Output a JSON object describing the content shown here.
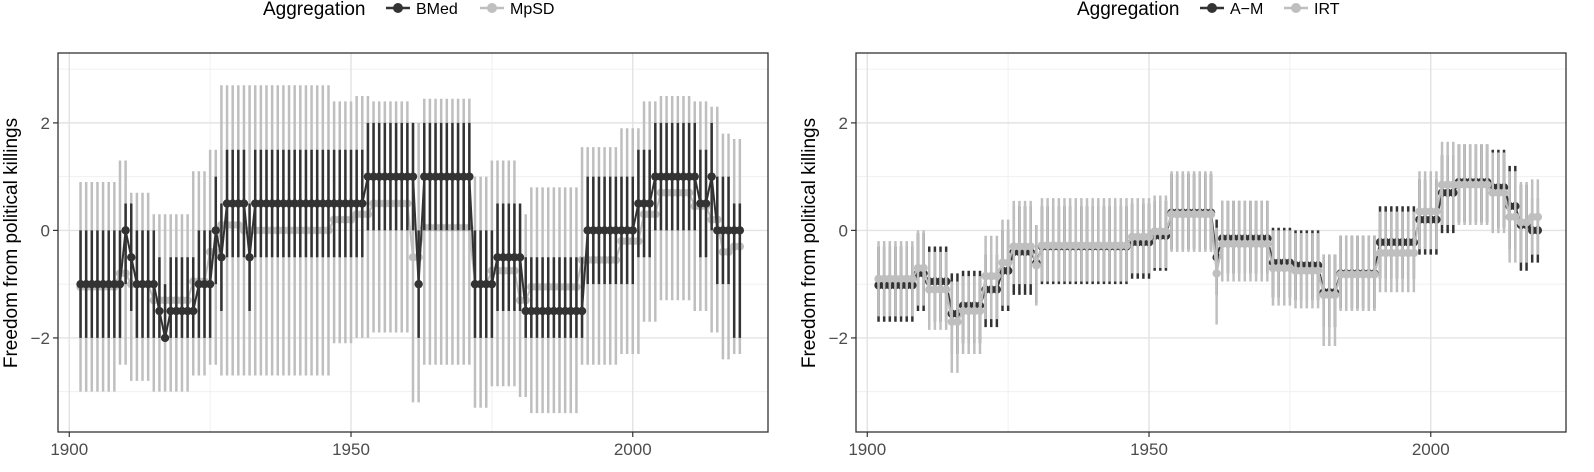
{
  "chart_data": [
    {
      "type": "line",
      "ylabel": "Freedom from political killings",
      "xlabel": "",
      "xlim": [
        1898,
        2024
      ],
      "ylim": [
        -3.75,
        3.3
      ],
      "x_ticks": [
        1900,
        1950,
        2000
      ],
      "x_tick_labels": [
        "1900",
        "1950",
        "2000"
      ],
      "y_ticks": [
        -2,
        0,
        2
      ],
      "y_tick_labels": [
        "−2",
        "0",
        "2"
      ],
      "grid": true,
      "legend": {
        "title": "Aggregation",
        "placement": "top",
        "entries": [
          {
            "name": "BMed",
            "color": "#333333"
          },
          {
            "name": "MpSD",
            "color": "#bfbfbf"
          }
        ]
      },
      "series": [
        {
          "name": "MpSD",
          "color": "#bfbfbf",
          "linewidth": 2.5,
          "segments": [
            [
              1902,
              1908,
              -1.05,
              -3,
              0.9
            ],
            [
              1909,
              1910,
              -0.8,
              -2.5,
              1.3
            ],
            [
              1911,
              1914,
              -1.0,
              -2.8,
              0.7
            ],
            [
              1915,
              1921,
              -1.3,
              -3.0,
              0.3
            ],
            [
              1922,
              1924,
              -0.95,
              -2.7,
              1.1
            ],
            [
              1925,
              1926,
              -0.4,
              -2.5,
              1.5
            ],
            [
              1927,
              1930,
              0.1,
              -2.7,
              2.7
            ],
            [
              1931,
              1946,
              0.0,
              -2.7,
              2.7
            ],
            [
              1947,
              1950,
              0.2,
              -2.1,
              2.4
            ],
            [
              1951,
              1953,
              0.3,
              -2.0,
              2.5
            ],
            [
              1954,
              1960,
              0.5,
              -1.9,
              2.4
            ],
            [
              1961,
              1962,
              -0.5,
              -3.2,
              2.0
            ],
            [
              1963,
              1971,
              0.05,
              -2.5,
              2.45
            ],
            [
              1972,
              1974,
              -1.0,
              -3.3,
              1.0
            ],
            [
              1975,
              1979,
              -0.75,
              -2.9,
              1.3
            ],
            [
              1980,
              1981,
              -1.3,
              -3.1,
              0.3
            ],
            [
              1982,
              1990,
              -1.05,
              -3.4,
              0.8
            ],
            [
              1991,
              1997,
              -0.55,
              -2.5,
              1.55
            ],
            [
              1998,
              2001,
              -0.2,
              -2.3,
              1.9
            ],
            [
              2002,
              2004,
              0.3,
              -1.7,
              2.4
            ],
            [
              2005,
              2010,
              0.7,
              -1.3,
              2.5
            ],
            [
              2011,
              2013,
              0.45,
              -1.5,
              2.4
            ],
            [
              2014,
              2015,
              0.2,
              -1.9,
              2.3
            ],
            [
              2016,
              2017,
              -0.4,
              -2.4,
              1.8
            ],
            [
              2018,
              2019,
              -0.3,
              -2.3,
              1.7
            ]
          ]
        },
        {
          "name": "BMed",
          "color": "#333333",
          "linewidth": 2.5,
          "segments": [
            [
              1902,
              1909,
              -1.0,
              -2.0,
              0.0
            ],
            [
              1910,
              1910,
              0.0,
              -1.0,
              0.5
            ],
            [
              1911,
              1911,
              -0.5,
              -1.5,
              0.5
            ],
            [
              1912,
              1915,
              -1.0,
              -2.0,
              0.0
            ],
            [
              1916,
              1916,
              -1.5,
              -2.0,
              -0.5
            ],
            [
              1917,
              1917,
              -2.0,
              -2.0,
              -1.0
            ],
            [
              1918,
              1922,
              -1.5,
              -2.0,
              -0.5
            ],
            [
              1923,
              1925,
              -1.0,
              -2.0,
              0.0
            ],
            [
              1926,
              1926,
              0.0,
              -1.0,
              1.0
            ],
            [
              1927,
              1927,
              -0.5,
              -1.5,
              0.5
            ],
            [
              1928,
              1931,
              0.5,
              -0.5,
              1.5
            ],
            [
              1932,
              1932,
              -0.5,
              -1.5,
              0.5
            ],
            [
              1933,
              1952,
              0.5,
              -0.5,
              1.5
            ],
            [
              1953,
              1961,
              1.0,
              0.0,
              2.0
            ],
            [
              1962,
              1962,
              -1.0,
              -2.0,
              0.0
            ],
            [
              1963,
              1971,
              1.0,
              0.0,
              2.0
            ],
            [
              1972,
              1972,
              -1.0,
              -2.0,
              0.0
            ],
            [
              1973,
              1975,
              -1.0,
              -2.0,
              0.0
            ],
            [
              1976,
              1980,
              -0.5,
              -1.5,
              0.5
            ],
            [
              1981,
              1991,
              -1.5,
              -2.0,
              -0.5
            ],
            [
              1992,
              1999,
              0.0,
              -1.0,
              1.0
            ],
            [
              2000,
              2000,
              0.0,
              -1.0,
              1.0
            ],
            [
              2001,
              2003,
              0.5,
              -0.5,
              1.5
            ],
            [
              2004,
              2011,
              1.0,
              0.0,
              2.0
            ],
            [
              2012,
              2013,
              0.5,
              -0.5,
              1.5
            ],
            [
              2014,
              2014,
              1.0,
              0.0,
              2.0
            ],
            [
              2015,
              2017,
              0.0,
              -1.0,
              1.0
            ],
            [
              2018,
              2019,
              0.0,
              -2.0,
              0.5
            ]
          ]
        }
      ]
    },
    {
      "type": "line",
      "ylabel": "Freedom from political killings",
      "xlabel": "",
      "xlim": [
        1898,
        2024
      ],
      "ylim": [
        -3.75,
        3.3
      ],
      "x_ticks": [
        1900,
        1950,
        2000
      ],
      "x_tick_labels": [
        "1900",
        "1950",
        "2000"
      ],
      "y_ticks": [
        -2,
        0,
        2
      ],
      "y_tick_labels": [
        "−2",
        "0",
        "2"
      ],
      "grid": true,
      "legend": {
        "title": "Aggregation",
        "placement": "top",
        "entries": [
          {
            "name": "A−M",
            "color": "#333333"
          },
          {
            "name": "IRT",
            "color": "#bfbfbf"
          }
        ]
      },
      "series": [
        {
          "name": "A−M",
          "color": "#333333",
          "linewidth": 2.5,
          "segments": [
            [
              1902,
              1908,
              -1.02,
              -1.7,
              -0.3
            ],
            [
              1909,
              1910,
              -0.8,
              -1.5,
              -0.05
            ],
            [
              1911,
              1914,
              -0.95,
              -1.7,
              -0.3
            ],
            [
              1915,
              1916,
              -1.55,
              -2.3,
              -0.8
            ],
            [
              1917,
              1920,
              -1.4,
              -2.1,
              -0.75
            ],
            [
              1921,
              1923,
              -1.1,
              -1.8,
              -0.45
            ],
            [
              1924,
              1925,
              -0.75,
              -1.5,
              0.0
            ],
            [
              1926,
              1929,
              -0.4,
              -1.2,
              0.45
            ],
            [
              1930,
              1930,
              -0.6,
              -1.35,
              0.1
            ],
            [
              1931,
              1946,
              -0.3,
              -1.0,
              0.45
            ],
            [
              1947,
              1950,
              -0.22,
              -0.9,
              0.5
            ],
            [
              1951,
              1953,
              -0.1,
              -0.75,
              0.55
            ],
            [
              1954,
              1961,
              0.33,
              -0.35,
              1.05
            ],
            [
              1962,
              1962,
              -0.5,
              -1.2,
              0.2
            ],
            [
              1963,
              1971,
              -0.15,
              -0.8,
              0.55
            ],
            [
              1972,
              1975,
              -0.6,
              -1.25,
              0.05
            ],
            [
              1976,
              1980,
              -0.65,
              -1.3,
              0.0
            ],
            [
              1981,
              1983,
              -1.15,
              -1.8,
              -0.45
            ],
            [
              1984,
              1990,
              -0.8,
              -1.45,
              -0.1
            ],
            [
              1991,
              1997,
              -0.22,
              -0.9,
              0.45
            ],
            [
              1998,
              2001,
              0.2,
              -0.45,
              0.95
            ],
            [
              2002,
              2004,
              0.7,
              -0.05,
              1.4
            ],
            [
              2005,
              2010,
              0.9,
              0.15,
              1.6
            ],
            [
              2011,
              2013,
              0.8,
              0.05,
              1.5
            ],
            [
              2014,
              2015,
              0.45,
              -0.35,
              1.2
            ],
            [
              2016,
              2017,
              0.1,
              -0.75,
              0.85
            ],
            [
              2018,
              2019,
              0.0,
              -0.6,
              0.6
            ]
          ]
        },
        {
          "name": "IRT",
          "color": "#bfbfbf",
          "linewidth": 2.5,
          "segments": [
            [
              1902,
              1908,
              -0.9,
              -1.6,
              -0.2
            ],
            [
              1909,
              1910,
              -0.7,
              -1.4,
              0.0
            ],
            [
              1911,
              1914,
              -1.1,
              -1.85,
              -0.4
            ],
            [
              1915,
              1916,
              -1.7,
              -2.65,
              -0.95
            ],
            [
              1917,
              1920,
              -1.5,
              -2.3,
              -0.85
            ],
            [
              1921,
              1923,
              -0.85,
              -1.65,
              -0.1
            ],
            [
              1924,
              1925,
              -0.6,
              -1.4,
              0.2
            ],
            [
              1926,
              1929,
              -0.3,
              -1.0,
              0.55
            ],
            [
              1930,
              1930,
              -0.65,
              -1.4,
              0.1
            ],
            [
              1931,
              1946,
              -0.28,
              -0.95,
              0.6
            ],
            [
              1947,
              1950,
              -0.12,
              -0.8,
              0.6
            ],
            [
              1951,
              1953,
              -0.02,
              -0.7,
              0.65
            ],
            [
              1954,
              1961,
              0.3,
              -0.4,
              1.1
            ],
            [
              1962,
              1962,
              -0.8,
              -1.75,
              0.05
            ],
            [
              1963,
              1971,
              -0.25,
              -0.95,
              0.55
            ],
            [
              1972,
              1975,
              -0.7,
              -1.4,
              0.0
            ],
            [
              1976,
              1980,
              -0.75,
              -1.45,
              -0.05
            ],
            [
              1981,
              1983,
              -1.2,
              -2.15,
              -0.45
            ],
            [
              1984,
              1990,
              -0.82,
              -1.5,
              -0.1
            ],
            [
              1991,
              1997,
              -0.42,
              -1.15,
              0.35
            ],
            [
              1998,
              2001,
              0.35,
              -0.35,
              1.1
            ],
            [
              2002,
              2004,
              0.85,
              0.1,
              1.65
            ],
            [
              2005,
              2010,
              0.85,
              0.1,
              1.6
            ],
            [
              2011,
              2013,
              0.7,
              -0.05,
              1.45
            ],
            [
              2014,
              2015,
              0.25,
              -0.6,
              1.1
            ],
            [
              2016,
              2017,
              0.15,
              -0.6,
              0.9
            ],
            [
              2018,
              2019,
              0.25,
              -0.45,
              0.95
            ]
          ]
        }
      ]
    }
  ]
}
